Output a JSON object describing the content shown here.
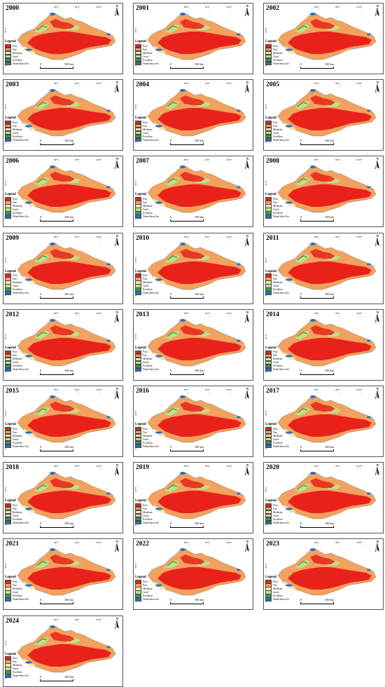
{
  "panels": [
    {
      "year": "2000"
    },
    {
      "year": "2001"
    },
    {
      "year": "2002"
    },
    {
      "year": "2003"
    },
    {
      "year": "2004"
    },
    {
      "year": "2005"
    },
    {
      "year": "2006"
    },
    {
      "year": "2007"
    },
    {
      "year": "2008"
    },
    {
      "year": "2009"
    },
    {
      "year": "2010"
    },
    {
      "year": "2011"
    },
    {
      "year": "2012"
    },
    {
      "year": "2013"
    },
    {
      "year": "2014"
    },
    {
      "year": "2015"
    },
    {
      "year": "2016"
    },
    {
      "year": "2017"
    },
    {
      "year": "2018"
    },
    {
      "year": "2019"
    },
    {
      "year": "2020"
    },
    {
      "year": "2021"
    },
    {
      "year": "2022"
    },
    {
      "year": "2023"
    },
    {
      "year": "2024"
    }
  ],
  "legend": {
    "title": "Legend",
    "items": [
      {
        "label": "Poor",
        "color": "#e8221a"
      },
      {
        "label": "Fair",
        "color": "#f2a25e"
      },
      {
        "label": "Moderate",
        "color": "#f7e3b0"
      },
      {
        "label": "Good",
        "color": "#bfe08a"
      },
      {
        "label": "Excellent",
        "color": "#3e9a4a"
      },
      {
        "label": "Water/Snow/Ice",
        "color": "#2a6fc0"
      }
    ]
  },
  "scale": {
    "start": "0",
    "end": "500 km"
  },
  "north_label": "N",
  "lon_labels": [
    "80°E",
    "90°E",
    "100°E"
  ],
  "lat_labels": [
    "45°N",
    "40°N",
    "35°N"
  ],
  "icons": {
    "north": "north-arrow-icon"
  }
}
